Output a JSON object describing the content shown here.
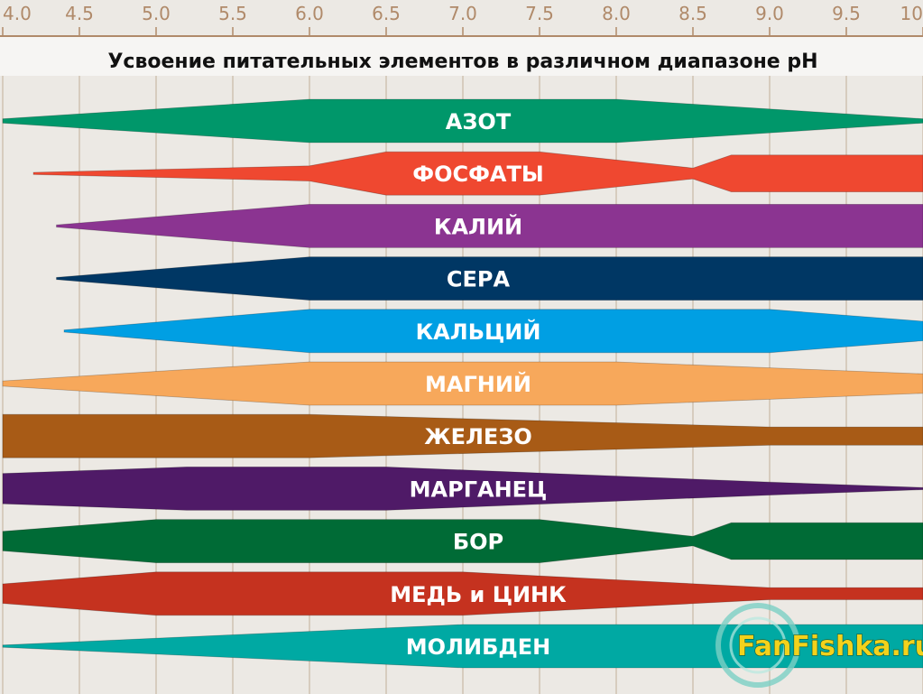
{
  "chart_data": {
    "type": "area",
    "title": "Усвоение питательных элементов в различном диапазоне рН",
    "xlim": [
      4.0,
      10.0
    ],
    "x_ticks": [
      4.0,
      4.5,
      5.0,
      5.5,
      6.0,
      6.5,
      7.0,
      7.5,
      8.0,
      8.5,
      9.0,
      9.5,
      10.0
    ],
    "x_tick_labels": [
      "4.0",
      "4.5",
      "5.0",
      "5.5",
      "6.0",
      "6.5",
      "7.0",
      "7.5",
      "8.0",
      "8.5",
      "9.0",
      "9.5",
      "10"
    ],
    "series": [
      {
        "name": "АЗОТ",
        "color": "#00976a",
        "points": [
          [
            4.0,
            0.1
          ],
          [
            6.0,
            1.0
          ],
          [
            8.0,
            1.0
          ],
          [
            10.0,
            0.1
          ]
        ]
      },
      {
        "name": "ФОСФАТЫ",
        "color": "#ef4830",
        "points": [
          [
            4.2,
            0.05
          ],
          [
            6.0,
            0.35
          ],
          [
            6.5,
            1.0
          ],
          [
            7.5,
            1.0
          ],
          [
            8.5,
            0.25
          ],
          [
            8.75,
            0.85
          ],
          [
            10.0,
            0.85
          ]
        ]
      },
      {
        "name": "КАЛИЙ",
        "color": "#8b3491",
        "points": [
          [
            4.35,
            0.05
          ],
          [
            6.0,
            1.0
          ],
          [
            10.0,
            1.0
          ]
        ]
      },
      {
        "name": "СЕРА",
        "color": "#003764",
        "points": [
          [
            4.35,
            0.05
          ],
          [
            6.0,
            1.0
          ],
          [
            10.0,
            1.0
          ]
        ]
      },
      {
        "name": "КАЛЬЦИЙ",
        "color": "#009fe3",
        "points": [
          [
            4.4,
            0.05
          ],
          [
            6.0,
            1.0
          ],
          [
            9.0,
            1.0
          ],
          [
            10.0,
            0.45
          ]
        ]
      },
      {
        "name": "МАГНИЙ",
        "color": "#f7a85b",
        "points": [
          [
            4.0,
            0.12
          ],
          [
            6.0,
            1.0
          ],
          [
            8.0,
            1.0
          ],
          [
            10.0,
            0.45
          ]
        ]
      },
      {
        "name": "ЖЕЛЕЗО",
        "color": "#a85b16",
        "points": [
          [
            4.0,
            1.0
          ],
          [
            6.0,
            1.0
          ],
          [
            9.0,
            0.42
          ],
          [
            10.0,
            0.42
          ]
        ]
      },
      {
        "name": "МАРГАНЕЦ",
        "color": "#4f1a67",
        "points": [
          [
            4.0,
            0.7
          ],
          [
            5.2,
            1.0
          ],
          [
            6.5,
            1.0
          ],
          [
            9.0,
            0.3
          ],
          [
            10.0,
            0.05
          ]
        ]
      },
      {
        "name": "БОР",
        "color": "#006b36",
        "points": [
          [
            4.0,
            0.45
          ],
          [
            5.0,
            1.0
          ],
          [
            7.5,
            1.0
          ],
          [
            8.5,
            0.22
          ],
          [
            8.75,
            0.85
          ],
          [
            10.0,
            0.85
          ]
        ]
      },
      {
        "name": "МЕДЬ и ЦИНК",
        "color": "#c5321f",
        "points": [
          [
            4.0,
            0.45
          ],
          [
            5.0,
            1.0
          ],
          [
            7.0,
            1.0
          ],
          [
            9.0,
            0.28
          ],
          [
            10.0,
            0.28
          ]
        ]
      },
      {
        "name": "МОЛИБДЕН",
        "color": "#00a9a3",
        "points": [
          [
            4.0,
            0.05
          ],
          [
            7.0,
            1.0
          ],
          [
            10.0,
            1.0
          ]
        ]
      }
    ],
    "grid": true,
    "legend": "none"
  },
  "watermark": {
    "text": "FanFishka.ru"
  }
}
